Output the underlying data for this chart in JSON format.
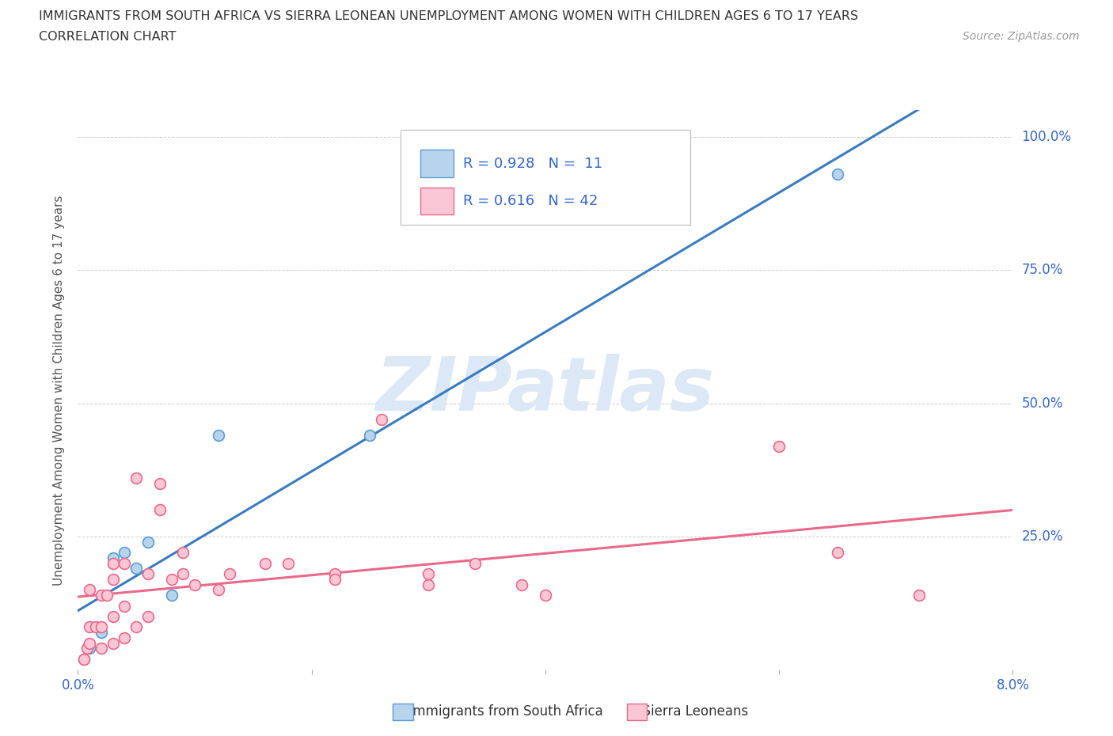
{
  "title_line1": "IMMIGRANTS FROM SOUTH AFRICA VS SIERRA LEONEAN UNEMPLOYMENT AMONG WOMEN WITH CHILDREN AGES 6 TO 17 YEARS",
  "title_line2": "CORRELATION CHART",
  "source_text": "Source: ZipAtlas.com",
  "ylabel": "Unemployment Among Women with Children Ages 6 to 17 years",
  "xlim": [
    0.0,
    0.08
  ],
  "ylim": [
    0.0,
    1.05
  ],
  "xticks": [
    0.0,
    0.02,
    0.04,
    0.06,
    0.08
  ],
  "xticklabels": [
    "0.0%",
    "",
    "",
    "",
    "8.0%"
  ],
  "yticks": [
    0.0,
    0.25,
    0.5,
    0.75,
    1.0
  ],
  "yticklabels": [
    "",
    "25.0%",
    "50.0%",
    "75.0%",
    "100.0%"
  ],
  "watermark": "ZIPatlas",
  "blue_R": "0.928",
  "blue_N": "11",
  "pink_R": "0.616",
  "pink_N": "42",
  "blue_scatter_x": [
    0.0005,
    0.001,
    0.002,
    0.003,
    0.004,
    0.005,
    0.006,
    0.008,
    0.012,
    0.025,
    0.065
  ],
  "blue_scatter_y": [
    0.02,
    0.04,
    0.07,
    0.21,
    0.22,
    0.19,
    0.24,
    0.14,
    0.44,
    0.44,
    0.93
  ],
  "pink_scatter_x": [
    0.0005,
    0.0008,
    0.001,
    0.001,
    0.001,
    0.0015,
    0.002,
    0.002,
    0.002,
    0.0025,
    0.003,
    0.003,
    0.003,
    0.003,
    0.004,
    0.004,
    0.004,
    0.005,
    0.005,
    0.006,
    0.006,
    0.007,
    0.007,
    0.008,
    0.009,
    0.009,
    0.01,
    0.012,
    0.013,
    0.016,
    0.018,
    0.022,
    0.022,
    0.026,
    0.03,
    0.03,
    0.034,
    0.038,
    0.04,
    0.06,
    0.065,
    0.072
  ],
  "pink_scatter_y": [
    0.02,
    0.04,
    0.05,
    0.08,
    0.15,
    0.08,
    0.04,
    0.08,
    0.14,
    0.14,
    0.05,
    0.1,
    0.17,
    0.2,
    0.06,
    0.12,
    0.2,
    0.08,
    0.36,
    0.1,
    0.18,
    0.3,
    0.35,
    0.17,
    0.18,
    0.22,
    0.16,
    0.15,
    0.18,
    0.2,
    0.2,
    0.18,
    0.17,
    0.47,
    0.16,
    0.18,
    0.2,
    0.16,
    0.14,
    0.42,
    0.22,
    0.14
  ],
  "blue_face_color": "#b8d4ec",
  "blue_edge_color": "#5b9bd5",
  "pink_face_color": "#f9c6d5",
  "pink_edge_color": "#e8698a",
  "trend_blue_color": "#3a7bbf",
  "trend_pink_color": "#e8698a",
  "bg_color": "#ffffff",
  "grid_color": "#cccccc",
  "watermark_color": "#dce8f5",
  "title_color": "#333333",
  "legend_text_color": "#3366cc",
  "tick_color": "#3366cc",
  "ylabel_color": "#555555",
  "source_color": "#999999"
}
